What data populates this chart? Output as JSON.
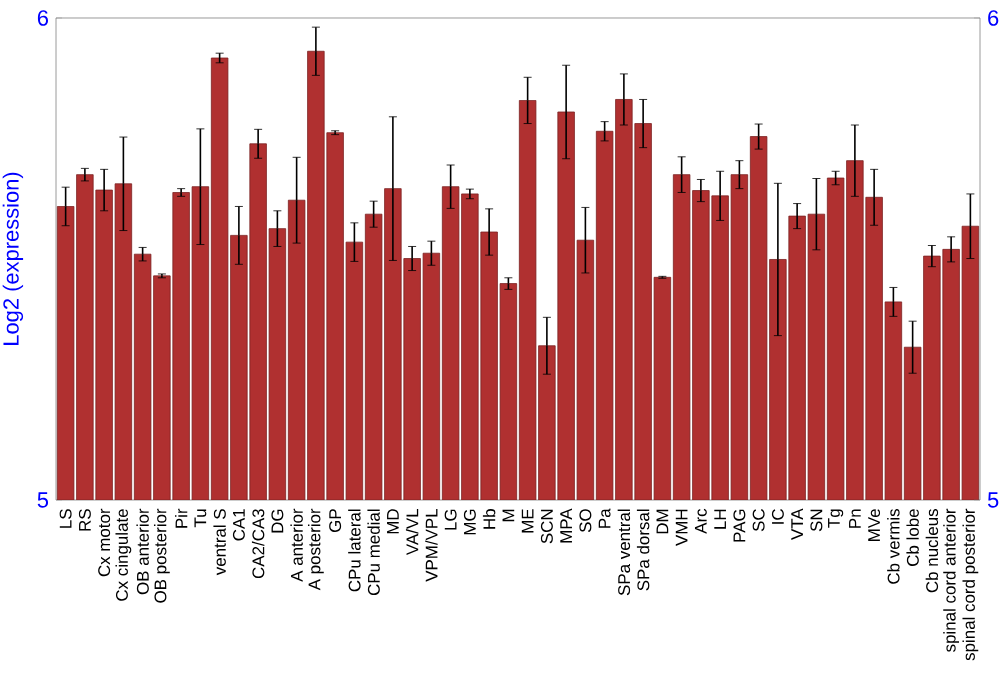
{
  "chart_data": {
    "type": "bar",
    "ylabel": "Log2 (expression)",
    "categories": [
      "LS",
      "RS",
      "Cx motor",
      "Cx cingulate",
      "OB anterior",
      "OB posterior",
      "Pir",
      "Tu",
      "ventral S",
      "CA1",
      "CA2/CA3",
      "DG",
      "A anterior",
      "A posterior",
      "GP",
      "CPu lateral",
      "CPu medial",
      "MD",
      "VA/VL",
      "VPM/VPL",
      "LG",
      "MG",
      "Hb",
      "M",
      "ME",
      "SCN",
      "MPA",
      "SO",
      "Pa",
      "SPa ventral",
      "SPa dorsal",
      "DM",
      "VMH",
      "Arc",
      "LH",
      "PAG",
      "SC",
      "IC",
      "VTA",
      "SN",
      "Tg",
      "Pn",
      "MVe",
      "Cb vermis",
      "Cb lobe",
      "Cb nucleus",
      "spinal cord anterior",
      "spinal cord posterior"
    ],
    "values": [
      5.609,
      5.675,
      5.643,
      5.656,
      5.51,
      5.465,
      5.638,
      5.65,
      5.917,
      5.549,
      5.739,
      5.563,
      5.622,
      5.931,
      5.762,
      5.535,
      5.593,
      5.646,
      5.501,
      5.512,
      5.65,
      5.635,
      5.556,
      5.449,
      5.829,
      5.32,
      5.805,
      5.539,
      5.765,
      5.831,
      5.781,
      5.462,
      5.675,
      5.642,
      5.631,
      5.675,
      5.754,
      5.499,
      5.589,
      5.593,
      5.668,
      5.704,
      5.628,
      5.411,
      5.317,
      5.506,
      5.52,
      5.568
    ],
    "errors": [
      0.04,
      0.013,
      0.043,
      0.097,
      0.014,
      0.004,
      0.008,
      0.12,
      0.01,
      0.06,
      0.03,
      0.037,
      0.089,
      0.05,
      0.004,
      0.04,
      0.027,
      0.149,
      0.025,
      0.025,
      0.045,
      0.01,
      0.048,
      0.012,
      0.048,
      0.059,
      0.097,
      0.068,
      0.02,
      0.053,
      0.05,
      0.002,
      0.037,
      0.023,
      0.051,
      0.029,
      0.026,
      0.158,
      0.026,
      0.074,
      0.014,
      0.074,
      0.058,
      0.03,
      0.054,
      0.022,
      0.026,
      0.067
    ],
    "color": "#b03030",
    "ylim": [
      5,
      6
    ],
    "yticks": [
      5,
      6
    ],
    "y2lim": [
      5,
      6
    ],
    "y2ticks": [
      5,
      6
    ],
    "grid": false
  }
}
